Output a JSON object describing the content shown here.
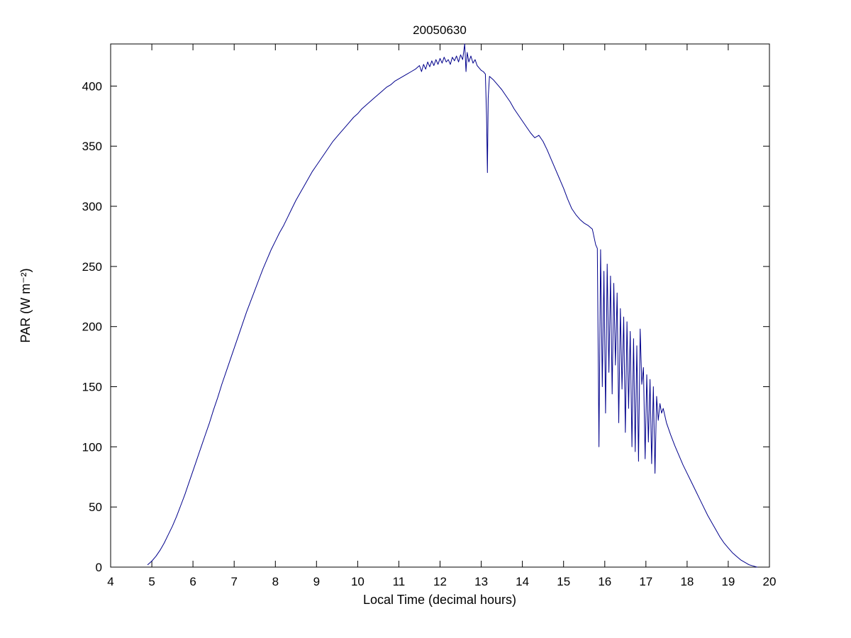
{
  "chart_data": {
    "type": "line",
    "title": "20050630",
    "xlabel": "Local Time (decimal hours)",
    "ylabel": "PAR (W m⁻²)",
    "xlim": [
      4,
      20
    ],
    "ylim": [
      0,
      435
    ],
    "xticks": [
      4,
      5,
      6,
      7,
      8,
      9,
      10,
      11,
      12,
      13,
      14,
      15,
      16,
      17,
      18,
      19,
      20
    ],
    "yticks": [
      0,
      50,
      100,
      150,
      200,
      250,
      300,
      350,
      400
    ],
    "grid": false,
    "legend": "none",
    "line_color": "#00008B",
    "background_color": "#FFFFFF",
    "series": [
      {
        "name": "PAR",
        "points": [
          [
            4.9,
            2
          ],
          [
            5.0,
            5
          ],
          [
            5.1,
            9
          ],
          [
            5.2,
            14
          ],
          [
            5.3,
            20
          ],
          [
            5.4,
            27
          ],
          [
            5.5,
            34
          ],
          [
            5.6,
            42
          ],
          [
            5.7,
            51
          ],
          [
            5.8,
            60
          ],
          [
            5.9,
            70
          ],
          [
            6.0,
            80
          ],
          [
            6.1,
            90
          ],
          [
            6.2,
            100
          ],
          [
            6.3,
            110
          ],
          [
            6.4,
            120
          ],
          [
            6.5,
            131
          ],
          [
            6.6,
            141
          ],
          [
            6.7,
            152
          ],
          [
            6.8,
            162
          ],
          [
            6.9,
            172
          ],
          [
            7.0,
            182
          ],
          [
            7.1,
            192
          ],
          [
            7.2,
            202
          ],
          [
            7.3,
            212
          ],
          [
            7.4,
            221
          ],
          [
            7.5,
            230
          ],
          [
            7.6,
            239
          ],
          [
            7.7,
            248
          ],
          [
            7.8,
            256
          ],
          [
            7.9,
            264
          ],
          [
            8.0,
            271
          ],
          [
            8.1,
            278
          ],
          [
            8.2,
            284
          ],
          [
            8.3,
            291
          ],
          [
            8.4,
            298
          ],
          [
            8.5,
            305
          ],
          [
            8.6,
            311
          ],
          [
            8.7,
            317
          ],
          [
            8.8,
            323
          ],
          [
            8.9,
            329
          ],
          [
            9.0,
            334
          ],
          [
            9.1,
            339
          ],
          [
            9.2,
            344
          ],
          [
            9.3,
            349
          ],
          [
            9.4,
            354
          ],
          [
            9.5,
            358
          ],
          [
            9.6,
            362
          ],
          [
            9.7,
            366
          ],
          [
            9.8,
            370
          ],
          [
            9.9,
            374
          ],
          [
            10.0,
            377
          ],
          [
            10.1,
            381
          ],
          [
            10.2,
            384
          ],
          [
            10.3,
            387
          ],
          [
            10.4,
            390
          ],
          [
            10.5,
            393
          ],
          [
            10.6,
            396
          ],
          [
            10.7,
            399
          ],
          [
            10.8,
            401
          ],
          [
            10.9,
            404
          ],
          [
            11.0,
            406
          ],
          [
            11.1,
            408
          ],
          [
            11.2,
            410
          ],
          [
            11.3,
            412
          ],
          [
            11.4,
            414
          ],
          [
            11.5,
            417
          ],
          [
            11.55,
            412
          ],
          [
            11.6,
            418
          ],
          [
            11.65,
            414
          ],
          [
            11.7,
            420
          ],
          [
            11.75,
            416
          ],
          [
            11.8,
            421
          ],
          [
            11.85,
            417
          ],
          [
            11.9,
            422
          ],
          [
            11.95,
            418
          ],
          [
            12.0,
            423
          ],
          [
            12.05,
            419
          ],
          [
            12.1,
            424
          ],
          [
            12.15,
            420
          ],
          [
            12.2,
            422
          ],
          [
            12.25,
            418
          ],
          [
            12.3,
            424
          ],
          [
            12.35,
            421
          ],
          [
            12.4,
            425
          ],
          [
            12.45,
            420
          ],
          [
            12.5,
            426
          ],
          [
            12.55,
            422
          ],
          [
            12.6,
            435
          ],
          [
            12.63,
            412
          ],
          [
            12.66,
            428
          ],
          [
            12.7,
            420
          ],
          [
            12.75,
            425
          ],
          [
            12.8,
            419
          ],
          [
            12.85,
            422
          ],
          [
            12.9,
            417
          ],
          [
            12.95,
            415
          ],
          [
            13.0,
            413
          ],
          [
            13.05,
            412
          ],
          [
            13.1,
            410
          ],
          [
            13.13,
            375
          ],
          [
            13.15,
            328
          ],
          [
            13.17,
            390
          ],
          [
            13.2,
            408
          ],
          [
            13.3,
            405
          ],
          [
            13.4,
            401
          ],
          [
            13.5,
            397
          ],
          [
            13.6,
            392
          ],
          [
            13.7,
            387
          ],
          [
            13.8,
            381
          ],
          [
            13.9,
            376
          ],
          [
            14.0,
            371
          ],
          [
            14.1,
            366
          ],
          [
            14.2,
            361
          ],
          [
            14.3,
            357
          ],
          [
            14.4,
            359
          ],
          [
            14.5,
            354
          ],
          [
            14.6,
            347
          ],
          [
            14.7,
            339
          ],
          [
            14.8,
            331
          ],
          [
            14.9,
            323
          ],
          [
            15.0,
            315
          ],
          [
            15.1,
            306
          ],
          [
            15.2,
            298
          ],
          [
            15.3,
            293
          ],
          [
            15.4,
            289
          ],
          [
            15.5,
            286
          ],
          [
            15.6,
            284
          ],
          [
            15.7,
            281
          ],
          [
            15.78,
            268
          ],
          [
            15.82,
            265
          ],
          [
            15.86,
            100
          ],
          [
            15.9,
            264
          ],
          [
            15.94,
            150
          ],
          [
            15.98,
            246
          ],
          [
            16.02,
            128
          ],
          [
            16.06,
            252
          ],
          [
            16.1,
            162
          ],
          [
            16.14,
            242
          ],
          [
            16.18,
            144
          ],
          [
            16.22,
            236
          ],
          [
            16.26,
            168
          ],
          [
            16.3,
            228
          ],
          [
            16.34,
            120
          ],
          [
            16.38,
            215
          ],
          [
            16.42,
            148
          ],
          [
            16.46,
            208
          ],
          [
            16.5,
            112
          ],
          [
            16.54,
            204
          ],
          [
            16.58,
            132
          ],
          [
            16.62,
            196
          ],
          [
            16.66,
            100
          ],
          [
            16.7,
            190
          ],
          [
            16.74,
            96
          ],
          [
            16.78,
            184
          ],
          [
            16.82,
            88
          ],
          [
            16.86,
            198
          ],
          [
            16.9,
            152
          ],
          [
            16.94,
            166
          ],
          [
            16.98,
            90
          ],
          [
            17.02,
            160
          ],
          [
            17.06,
            104
          ],
          [
            17.1,
            156
          ],
          [
            17.14,
            86
          ],
          [
            17.18,
            150
          ],
          [
            17.22,
            78
          ],
          [
            17.26,
            142
          ],
          [
            17.3,
            122
          ],
          [
            17.34,
            136
          ],
          [
            17.38,
            128
          ],
          [
            17.42,
            132
          ],
          [
            17.5,
            120
          ],
          [
            17.6,
            110
          ],
          [
            17.7,
            101
          ],
          [
            17.8,
            93
          ],
          [
            17.9,
            85
          ],
          [
            18.0,
            78
          ],
          [
            18.1,
            71
          ],
          [
            18.2,
            64
          ],
          [
            18.3,
            57
          ],
          [
            18.4,
            50
          ],
          [
            18.5,
            43
          ],
          [
            18.6,
            37
          ],
          [
            18.7,
            31
          ],
          [
            18.8,
            25
          ],
          [
            18.9,
            20
          ],
          [
            19.0,
            16
          ],
          [
            19.1,
            12
          ],
          [
            19.2,
            9
          ],
          [
            19.3,
            6
          ],
          [
            19.4,
            4
          ],
          [
            19.5,
            2
          ],
          [
            19.6,
            1
          ],
          [
            19.7,
            0
          ]
        ]
      }
    ]
  }
}
